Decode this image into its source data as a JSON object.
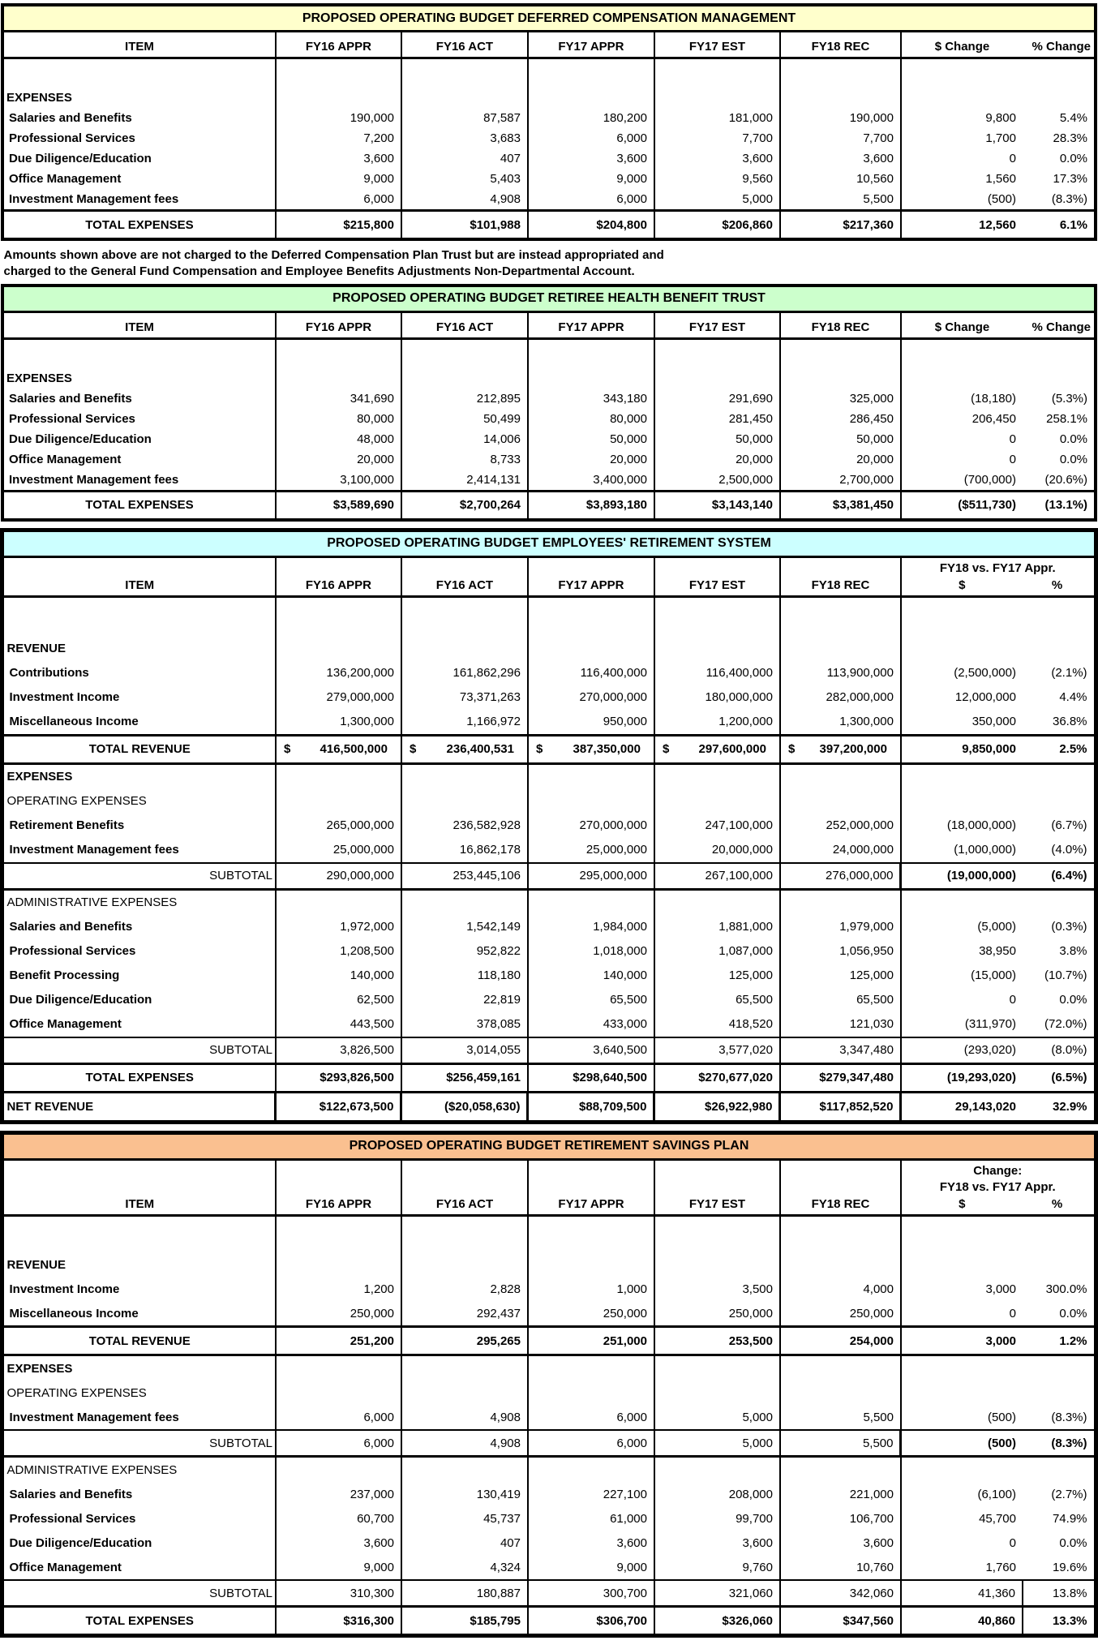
{
  "footnote": {
    "line1": "Amounts shown above are not charged to the Deferred Compensation Plan Trust but are instead appropriated and",
    "line2": "charged to the General Fund Compensation and Employee Benefits Adjustments Non-Departmental Account."
  },
  "tables": [
    {
      "title": "PROPOSED OPERATING BUDGET DEFERRED COMPENSATION MANAGEMENT",
      "title_bg": "#FFFFCC",
      "headers": {
        "item": "ITEM",
        "fiscal": [
          "FY16 APPR",
          "FY16 ACT",
          "FY17 APPR",
          "FY17 EST",
          "FY18 REC"
        ],
        "change_dollar": "$ Change",
        "change_pct": "% Change"
      },
      "rows": [
        {
          "type": "spacer"
        },
        {
          "type": "section",
          "label": "EXPENSES"
        },
        {
          "type": "data",
          "label": "Salaries and Benefits",
          "values": [
            "190,000",
            "87,587",
            "180,200",
            "181,000",
            "190,000",
            "9,800",
            "5.4%"
          ]
        },
        {
          "type": "data",
          "label": "Professional Services",
          "values": [
            "7,200",
            "3,683",
            "6,000",
            "7,700",
            "7,700",
            "1,700",
            "28.3%"
          ]
        },
        {
          "type": "data",
          "label": "Due Diligence/Education",
          "values": [
            "3,600",
            "407",
            "3,600",
            "3,600",
            "3,600",
            "0",
            "0.0%"
          ]
        },
        {
          "type": "data",
          "label": "Office Management",
          "values": [
            "9,000",
            "5,403",
            "9,000",
            "9,560",
            "10,560",
            "1,560",
            "17.3%"
          ]
        },
        {
          "type": "data",
          "label": "Investment Management fees",
          "values": [
            "6,000",
            "4,908",
            "6,000",
            "5,000",
            "5,500",
            "(500)",
            "(8.3%)"
          ]
        },
        {
          "type": "total",
          "label": "TOTAL EXPENSES",
          "values": [
            "$215,800",
            "$101,988",
            "$204,800",
            "$206,860",
            "$217,360",
            "12,560",
            "6.1%"
          ]
        }
      ]
    },
    {
      "title": "PROPOSED OPERATING BUDGET RETIREE HEALTH BENEFIT TRUST",
      "title_bg": "#CCFFCC",
      "headers": {
        "item": "ITEM",
        "fiscal": [
          "FY16 APPR",
          "FY16 ACT",
          "FY17 APPR",
          "FY17 EST",
          "FY18 REC"
        ],
        "change_dollar": "$ Change",
        "change_pct": "% Change"
      },
      "rows": [
        {
          "type": "spacer"
        },
        {
          "type": "section",
          "label": "EXPENSES"
        },
        {
          "type": "data",
          "label": "Salaries and Benefits",
          "values": [
            "341,690",
            "212,895",
            "343,180",
            "291,690",
            "325,000",
            "(18,180)",
            "(5.3%)"
          ]
        },
        {
          "type": "data",
          "label": "Professional Services",
          "values": [
            "80,000",
            "50,499",
            "80,000",
            "281,450",
            "286,450",
            "206,450",
            "258.1%"
          ]
        },
        {
          "type": "data",
          "label": "Due Diligence/Education",
          "values": [
            "48,000",
            "14,006",
            "50,000",
            "50,000",
            "50,000",
            "0",
            "0.0%"
          ]
        },
        {
          "type": "data",
          "label": "Office Management",
          "values": [
            "20,000",
            "8,733",
            "20,000",
            "20,000",
            "20,000",
            "0",
            "0.0%"
          ]
        },
        {
          "type": "data",
          "label": "Investment Management fees",
          "values": [
            "3,100,000",
            "2,414,131",
            "3,400,000",
            "2,500,000",
            "2,700,000",
            "(700,000)",
            "(20.6%)"
          ]
        },
        {
          "type": "total",
          "label": "TOTAL EXPENSES",
          "values": [
            "$3,589,690",
            "$2,700,264",
            "$3,893,180",
            "$3,143,140",
            "$3,381,450",
            "($511,730)",
            "(13.1%)"
          ]
        }
      ]
    },
    {
      "title": "PROPOSED OPERATING BUDGET EMPLOYEES' RETIREMENT SYSTEM",
      "title_bg": "#CCFFFF",
      "headers": {
        "item": "ITEM",
        "fiscal": [
          "FY16 APPR",
          "FY16 ACT",
          "FY17 APPR",
          "FY17 EST",
          "FY18 REC"
        ],
        "change_lines": [
          "FY18 vs. FY17 Appr."
        ],
        "change_sub": [
          "$",
          "%"
        ]
      },
      "rows": [
        {
          "type": "spacer"
        },
        {
          "type": "section",
          "label": "REVENUE"
        },
        {
          "type": "data",
          "label": "Contributions",
          "values": [
            "136,200,000",
            "161,862,296",
            "116,400,000",
            "116,400,000",
            "113,900,000",
            "(2,500,000)",
            "(2.1%)"
          ]
        },
        {
          "type": "data",
          "label": "Investment Income",
          "values": [
            "279,000,000",
            "73,371,263",
            "270,000,000",
            "180,000,000",
            "282,000,000",
            "12,000,000",
            "4.4%"
          ]
        },
        {
          "type": "data",
          "label": "Miscellaneous Income",
          "values": [
            "1,300,000",
            "1,166,972",
            "950,000",
            "1,200,000",
            "1,300,000",
            "350,000",
            "36.8%"
          ]
        },
        {
          "type": "total",
          "label": "TOTAL REVENUE",
          "values": [
            "$ 416,500,000",
            "$ 236,400,531",
            "$ 387,350,000",
            "$ 297,600,000",
            "$ 397,200,000",
            "9,850,000",
            "2.5%"
          ]
        },
        {
          "type": "section",
          "label": "EXPENSES"
        },
        {
          "type": "subsection",
          "label": "OPERATING EXPENSES"
        },
        {
          "type": "data",
          "label": "Retirement Benefits",
          "values": [
            "265,000,000",
            "236,582,928",
            "270,000,000",
            "247,100,000",
            "252,000,000",
            "(18,000,000)",
            "(6.7%)"
          ]
        },
        {
          "type": "data",
          "label": "Investment Management fees",
          "values": [
            "25,000,000",
            "16,862,178",
            "25,000,000",
            "20,000,000",
            "24,000,000",
            "(1,000,000)",
            "(4.0%)"
          ]
        },
        {
          "type": "subtotal",
          "label": "SUBTOTAL",
          "change_box": true,
          "values": [
            "290,000,000",
            "253,445,106",
            "295,000,000",
            "267,100,000",
            "276,000,000",
            "(19,000,000)",
            "(6.4%)"
          ]
        },
        {
          "type": "subsection",
          "label": "ADMINISTRATIVE EXPENSES",
          "rule_above": true
        },
        {
          "type": "data",
          "label": "Salaries and Benefits",
          "values": [
            "1,972,000",
            "1,542,149",
            "1,984,000",
            "1,881,000",
            "1,979,000",
            "(5,000)",
            "(0.3%)"
          ]
        },
        {
          "type": "data",
          "label": "Professional Services",
          "values": [
            "1,208,500",
            "952,822",
            "1,018,000",
            "1,087,000",
            "1,056,950",
            "38,950",
            "3.8%"
          ]
        },
        {
          "type": "data",
          "label": "Benefit Processing",
          "values": [
            "140,000",
            "118,180",
            "140,000",
            "125,000",
            "125,000",
            "(15,000)",
            "(10.7%)"
          ]
        },
        {
          "type": "data",
          "label": "Due Diligence/Education",
          "values": [
            "62,500",
            "22,819",
            "65,500",
            "65,500",
            "65,500",
            "0",
            "0.0%"
          ]
        },
        {
          "type": "data",
          "label": "Office Management",
          "values": [
            "443,500",
            "378,085",
            "433,000",
            "418,520",
            "121,030",
            "(311,970)",
            "(72.0%)"
          ]
        },
        {
          "type": "subtotal",
          "label": "SUBTOTAL",
          "values": [
            "3,826,500",
            "3,014,055",
            "3,640,500",
            "3,577,020",
            "3,347,480",
            "(293,020)",
            "(8.0%)"
          ]
        },
        {
          "type": "total",
          "label": "TOTAL EXPENSES",
          "values": [
            "$293,826,500",
            "$256,459,161",
            "$298,640,500",
            "$270,677,020",
            "$279,347,480",
            "(19,293,020)",
            "(6.5%)"
          ]
        },
        {
          "type": "net",
          "label": "NET REVENUE",
          "values": [
            "$122,673,500",
            "($20,058,630)",
            "$88,709,500",
            "$26,922,980",
            "$117,852,520",
            "29,143,020",
            "32.9%"
          ]
        }
      ]
    },
    {
      "title": "PROPOSED OPERATING BUDGET RETIREMENT SAVINGS PLAN",
      "title_bg": "#FAC090",
      "headers": {
        "item": "ITEM",
        "fiscal": [
          "FY16 APPR",
          "FY16 ACT",
          "FY17 APPR",
          "FY17 EST",
          "FY18 REC"
        ],
        "change_lines": [
          "Change:",
          "FY18 vs. FY17 Appr."
        ],
        "change_sub": [
          "$",
          "%"
        ]
      },
      "rows": [
        {
          "type": "spacer"
        },
        {
          "type": "section",
          "label": "REVENUE"
        },
        {
          "type": "data",
          "label": "Investment Income",
          "values": [
            "1,200",
            "2,828",
            "1,000",
            "3,500",
            "4,000",
            "3,000",
            "300.0%"
          ]
        },
        {
          "type": "data",
          "label": "Miscellaneous Income",
          "values": [
            "250,000",
            "292,437",
            "250,000",
            "250,000",
            "250,000",
            "0",
            "0.0%"
          ]
        },
        {
          "type": "total",
          "label": "TOTAL REVENUE",
          "values": [
            "251,200",
            "295,265",
            "251,000",
            "253,500",
            "254,000",
            "3,000",
            "1.2%"
          ]
        },
        {
          "type": "section",
          "label": "EXPENSES"
        },
        {
          "type": "subsection",
          "label": "OPERATING EXPENSES"
        },
        {
          "type": "data",
          "label": "Investment Management fees",
          "values": [
            "6,000",
            "4,908",
            "6,000",
            "5,000",
            "5,500",
            "(500)",
            "(8.3%)"
          ]
        },
        {
          "type": "subtotal",
          "label": "SUBTOTAL",
          "change_box": true,
          "values": [
            "6,000",
            "4,908",
            "6,000",
            "5,000",
            "5,500",
            "(500)",
            "(8.3%)"
          ]
        },
        {
          "type": "subsection",
          "label": "ADMINISTRATIVE EXPENSES",
          "rule_above": true
        },
        {
          "type": "data",
          "label": "Salaries and Benefits",
          "values": [
            "237,000",
            "130,419",
            "227,100",
            "208,000",
            "221,000",
            "(6,100)",
            "(2.7%)"
          ]
        },
        {
          "type": "data",
          "label": "Professional Services",
          "values": [
            "60,700",
            "45,737",
            "61,000",
            "99,700",
            "106,700",
            "45,700",
            "74.9%"
          ]
        },
        {
          "type": "data",
          "label": "Due Diligence/Education",
          "values": [
            "3,600",
            "407",
            "3,600",
            "3,600",
            "3,600",
            "0",
            "0.0%"
          ]
        },
        {
          "type": "data",
          "label": "Office Management",
          "values": [
            "9,000",
            "4,324",
            "9,000",
            "9,760",
            "10,760",
            "1,760",
            "19.6%"
          ]
        },
        {
          "type": "subtotal",
          "label": "SUBTOTAL",
          "change_divider": true,
          "values": [
            "310,300",
            "180,887",
            "300,700",
            "321,060",
            "342,060",
            "41,360",
            "13.8%"
          ]
        },
        {
          "type": "total",
          "label": "TOTAL EXPENSES",
          "change_divider": true,
          "values": [
            "$316,300",
            "$185,795",
            "$306,700",
            "$326,060",
            "$347,560",
            "40,860",
            "13.3%"
          ]
        }
      ]
    }
  ]
}
